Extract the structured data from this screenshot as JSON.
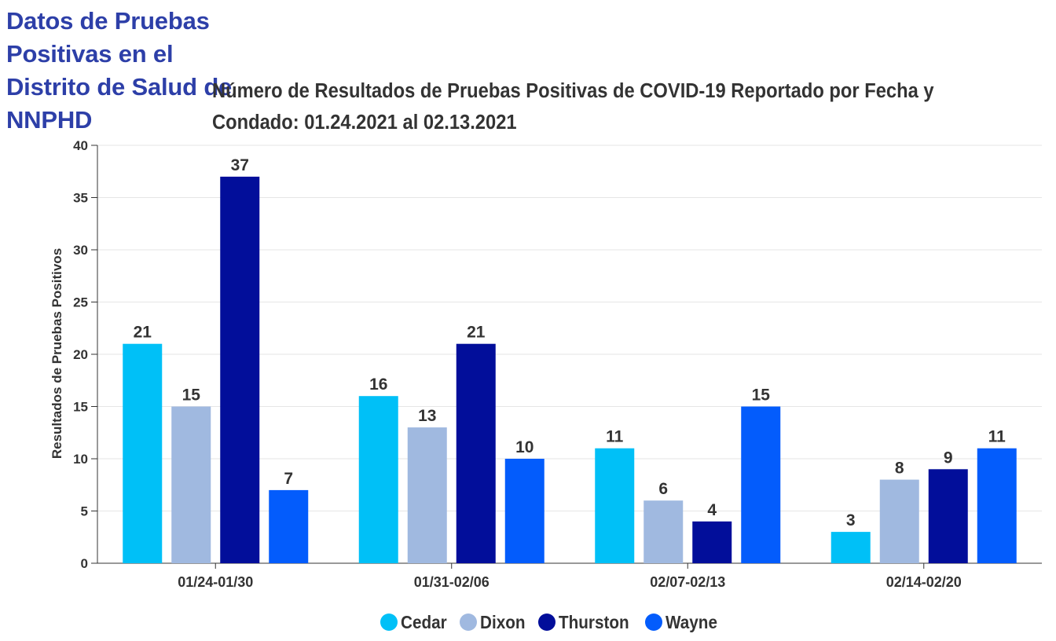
{
  "page": {
    "heading": "Datos de Pruebas Positivas en el Distrito de Salud de NNPHD"
  },
  "chart_data": {
    "type": "bar",
    "title": "Número de Resultados de Pruebas Positivas de COVID-19 Reportado por Fecha y Condado: 01.24.2021 al 02.13.2021",
    "xlabel": "",
    "ylabel": "Resultados de Pruebas Positivos",
    "ylim": [
      0,
      40
    ],
    "yticks": [
      0,
      5,
      10,
      15,
      20,
      25,
      30,
      35,
      40
    ],
    "grid": true,
    "legend_position": "bottom",
    "categories": [
      "01/24-01/30",
      "01/31-02/06",
      "02/07-02/13",
      "02/14-02/20"
    ],
    "series": [
      {
        "name": "Cedar",
        "color": "#00c0f7",
        "values": [
          21,
          16,
          11,
          3
        ]
      },
      {
        "name": "Dixon",
        "color": "#a0b9e0",
        "values": [
          15,
          13,
          6,
          8
        ]
      },
      {
        "name": "Thurston",
        "color": "#020e9a",
        "values": [
          37,
          21,
          4,
          9
        ]
      },
      {
        "name": "Wayne",
        "color": "#035cfc",
        "values": [
          7,
          10,
          15,
          11
        ]
      }
    ],
    "data_labels": true
  }
}
